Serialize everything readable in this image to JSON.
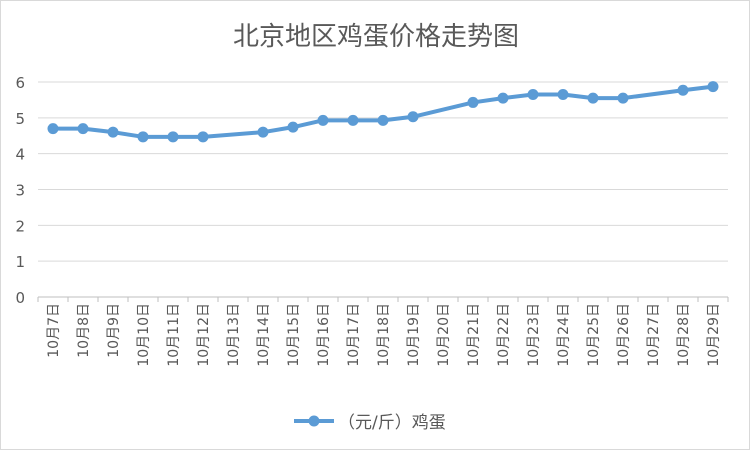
{
  "chart_data": {
    "type": "line",
    "title": "北京地区鸡蛋价格走势图",
    "categories": [
      "10月7日",
      "10月8日",
      "10月9日",
      "10月10日",
      "10月11日",
      "10月12日",
      "10月13日",
      "10月14日",
      "10月15日",
      "10月16日",
      "10月17日",
      "10月18日",
      "10月19日",
      "10月20日",
      "10月21日",
      "10月22日",
      "10月23日",
      "10月24日",
      "10月25日",
      "10月26日",
      "10月27日",
      "10月28日",
      "10月29日"
    ],
    "series": [
      {
        "name": "（元/斤）鸡蛋",
        "values": [
          4.7,
          4.7,
          4.6,
          4.47,
          4.47,
          4.47,
          null,
          4.6,
          4.74,
          4.93,
          4.93,
          4.93,
          5.03,
          null,
          5.43,
          5.55,
          5.65,
          5.65,
          5.55,
          5.55,
          null,
          5.77,
          5.87
        ]
      }
    ],
    "ylim": [
      0,
      6
    ],
    "yticks": [
      0,
      1,
      2,
      3,
      4,
      5,
      6
    ],
    "grid": true,
    "legend": "bottom",
    "colors": {
      "series": "#5b9bd5",
      "grid": "#d9d9d9",
      "axis": "#bfbfbf",
      "text": "#595959",
      "title": "#595959"
    }
  }
}
